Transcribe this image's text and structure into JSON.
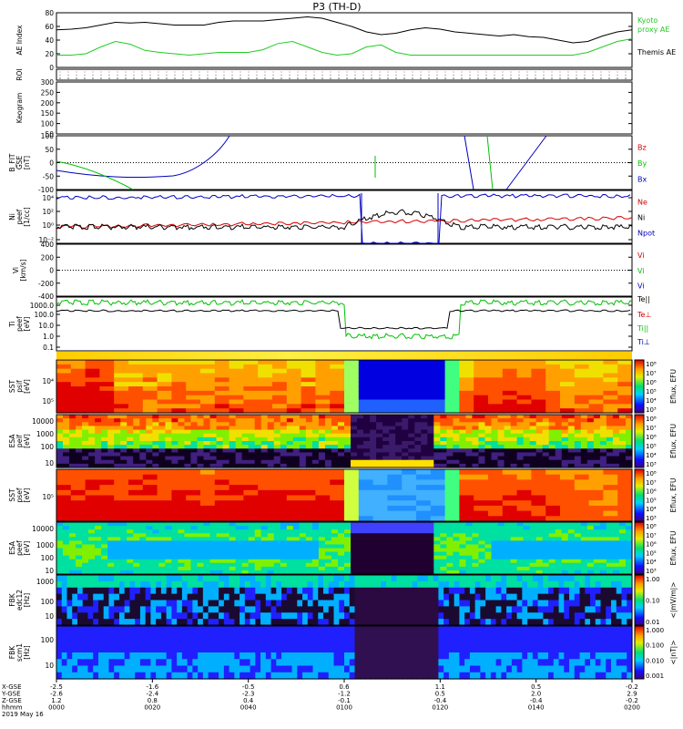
{
  "title": "P3 (TH-D)",
  "colors": {
    "black": "#000000",
    "red": "#d40000",
    "green": "#00c000",
    "blue": "#0000c0",
    "kyoto": "#22cc22"
  },
  "chart_data": {
    "type": "line",
    "title": "P3 (TH-D)",
    "time_axis": {
      "rows": [
        {
          "label": "X-GSE",
          "values": [
            "-2.5",
            "-1.6",
            "-0.5",
            "0.6",
            "1.1",
            "0.5",
            "-0.2"
          ]
        },
        {
          "label": "Y-GSE",
          "values": [
            "-2.6",
            "-2.4",
            "-2.3",
            "-1.2",
            "0.5",
            "2.0",
            "2.9"
          ]
        },
        {
          "label": "Z-GSE",
          "values": [
            "1.2",
            "0.8",
            "0.4",
            "-0.1",
            "-0.4",
            "-0.4",
            "-0.2"
          ]
        },
        {
          "label": "hhmm",
          "values": [
            "0000",
            "0020",
            "0040",
            "0100",
            "0120",
            "0140",
            "0200"
          ]
        }
      ],
      "date": "2019 May 16"
    },
    "panels": [
      {
        "id": "ae",
        "ylabel": "AE Index",
        "yticks": [
          "0",
          "20",
          "40",
          "60",
          "80"
        ],
        "ylim": [
          0,
          80
        ],
        "series": [
          {
            "name": "Kyoto proxy AE",
            "color": "#22cc22",
            "values": [
              18,
              18,
              20,
              30,
              38,
              34,
              25,
              22,
              20,
              18,
              20,
              22,
              22,
              22,
              26,
              35,
              38,
              30,
              22,
              18,
              20,
              30,
              33,
              22,
              18,
              18,
              18,
              18,
              18,
              18,
              18,
              18,
              18,
              18,
              18,
              18,
              22,
              30,
              38,
              42
            ]
          },
          {
            "name": "Themis AE",
            "color": "#000000",
            "values": [
              55,
              56,
              58,
              62,
              66,
              65,
              66,
              64,
              62,
              62,
              62,
              66,
              68,
              68,
              68,
              70,
              72,
              74,
              72,
              66,
              60,
              52,
              48,
              50,
              55,
              58,
              56,
              52,
              50,
              48,
              46,
              48,
              45,
              44,
              40,
              36,
              38,
              46,
              52,
              55
            ]
          }
        ]
      },
      {
        "id": "roi",
        "ylabel": "ROI"
      },
      {
        "id": "keogram",
        "ylabel": "Keogram",
        "yticks": [
          "50",
          "100",
          "150",
          "200",
          "250",
          "300"
        ],
        "ylim": [
          50,
          300
        ]
      },
      {
        "id": "bfit",
        "ylabel": "B_FIT",
        "ylabel2": "GSE",
        "unit": "[nT]",
        "yticks": [
          "-100",
          "-50",
          "0",
          "50",
          "100"
        ],
        "ylim": [
          -100,
          100
        ],
        "legend": [
          "Bz",
          "By",
          "Bx"
        ]
      },
      {
        "id": "ni",
        "ylabel": "Ni",
        "ylabel2": "peef",
        "unit": "[1/cc]",
        "yticks": [
          "10⁻²",
          "10⁰",
          "10²",
          "10⁴"
        ],
        "legend": [
          "Ne",
          "Ni",
          "Npot"
        ]
      },
      {
        "id": "vi",
        "ylabel": "Vi",
        "unit": "[km/s]",
        "yticks": [
          "-400",
          "-200",
          "0",
          "200",
          "400"
        ],
        "ylim": [
          -500,
          500
        ],
        "legend": [
          "Vi",
          "Vi",
          "Vi"
        ]
      },
      {
        "id": "ti",
        "ylabel": "Ti",
        "ylabel2": "peef",
        "unit": "[eV]",
        "yticks": [
          "0.1",
          "1.0",
          "10.0",
          "100.0",
          "1000.0"
        ],
        "legend": [
          "Te||",
          "Te⊥",
          "Ti||",
          "Ti⊥"
        ]
      },
      {
        "id": "sst_i",
        "ylabel": "SST",
        "ylabel2": "psif",
        "unit": "[eV]",
        "yticks": [
          "10⁴",
          "10⁵"
        ],
        "colorbar_label": "Eflux, EFU",
        "cticks": [
          "10³",
          "10⁴",
          "10⁵",
          "10⁶",
          "10⁷",
          "10⁸"
        ]
      },
      {
        "id": "esa_i",
        "ylabel": "ESA",
        "ylabel2": "peif",
        "unit": "[eV]",
        "yticks": [
          "10",
          "100",
          "1000",
          "10000"
        ],
        "colorbar_label": "Eflux, EFU",
        "cticks": [
          "10³",
          "10⁴",
          "10⁵",
          "10⁶",
          "10⁷",
          "10⁸"
        ]
      },
      {
        "id": "sst_e",
        "ylabel": "SST",
        "ylabel2": "psef",
        "unit": "[eV]",
        "yticks": [
          "10⁵"
        ],
        "colorbar_label": "Eflux, EFU",
        "cticks": [
          "10³",
          "10⁴",
          "10⁵",
          "10⁶",
          "10⁷",
          "10⁸"
        ]
      },
      {
        "id": "esa_e",
        "ylabel": "ESA",
        "ylabel2": "peef",
        "unit": "[eV]",
        "yticks": [
          "10",
          "100",
          "1000",
          "10000"
        ],
        "colorbar_label": "Eflux, EFU",
        "cticks": [
          "10³",
          "10⁴",
          "10⁵",
          "10⁶",
          "10⁷",
          "10⁸"
        ]
      },
      {
        "id": "fbk_e",
        "ylabel": "FBK",
        "ylabel2": "edc12",
        "unit": "[Hz]",
        "yticks": [
          "10",
          "100",
          "1000"
        ],
        "colorbar_label": "<|mV/m|>",
        "cticks": [
          "0.01",
          "0.10",
          "1.00"
        ]
      },
      {
        "id": "fbk_b",
        "ylabel": "FBK",
        "ylabel2": "scm1",
        "unit": "[Hz]",
        "yticks": [
          "10",
          "100"
        ],
        "colorbar_label": "<|nT|>",
        "cticks": [
          "0.001",
          "0.010",
          "0.100",
          "1.000"
        ]
      }
    ]
  }
}
